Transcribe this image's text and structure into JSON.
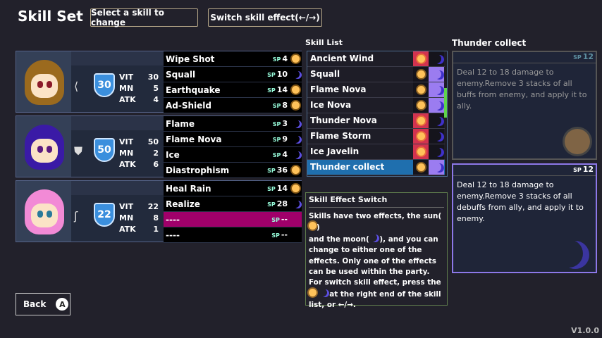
{
  "title": "Skill Set",
  "buttons": {
    "select": "Select a skill to change",
    "switch": "Switch skill effect(←/→)",
    "back": "Back",
    "back_key": "A"
  },
  "stat_labels": [
    "VIT",
    "MN",
    "ATK"
  ],
  "party": [
    {
      "hair": "#9b6a1e",
      "eyes": "#8b1a2a",
      "weapon_icon": "bow-icon",
      "weapon_glyph": "⟨",
      "level": "30",
      "vit": "30",
      "mn": "5",
      "atk": "4",
      "skills": [
        {
          "name": "Wipe Shot",
          "sp": "4",
          "effect": "sun"
        },
        {
          "name": "Squall",
          "sp": "10",
          "effect": "moon"
        },
        {
          "name": "Earthquake",
          "sp": "14",
          "effect": "sun"
        },
        {
          "name": "Ad-Shield",
          "sp": "8",
          "effect": "sun"
        }
      ]
    },
    {
      "hair": "#3a1aa6",
      "eyes": "#5a1a80",
      "weapon_icon": "shield-icon",
      "weapon_glyph": "⛊",
      "level": "50",
      "vit": "50",
      "mn": "2",
      "atk": "6",
      "skills": [
        {
          "name": "Flame",
          "sp": "3",
          "effect": "moon"
        },
        {
          "name": "Flame Nova",
          "sp": "9",
          "effect": "moon"
        },
        {
          "name": "Ice",
          "sp": "4",
          "effect": "moon"
        },
        {
          "name": "Diastrophism",
          "sp": "36",
          "effect": "sun"
        }
      ]
    },
    {
      "hair": "#f28ad6",
      "eyes": "#2a7a9a",
      "weapon_icon": "staff-icon",
      "weapon_glyph": "ʃ",
      "level": "22",
      "vit": "22",
      "mn": "8",
      "atk": "1",
      "skills": [
        {
          "name": "Heal Rain",
          "sp": "14",
          "effect": "sun"
        },
        {
          "name": "Realize",
          "sp": "28",
          "effect": "moon"
        },
        {
          "name": "----",
          "sp": "--",
          "effect": "",
          "selected": true
        },
        {
          "name": "----",
          "sp": "--",
          "effect": ""
        }
      ]
    }
  ],
  "sp_label": "SP",
  "skill_list": {
    "label": "Skill List",
    "items": [
      {
        "name": "Ancient Wind",
        "effect": "sun"
      },
      {
        "name": "Squall",
        "effect": "moon"
      },
      {
        "name": "Flame Nova",
        "effect": "moon"
      },
      {
        "name": "Ice Nova",
        "effect": "moon"
      },
      {
        "name": "Thunder Nova",
        "effect": "sun"
      },
      {
        "name": "Flame Storm",
        "effect": "sun"
      },
      {
        "name": "Ice Javelin",
        "effect": "sun"
      },
      {
        "name": "Thunder collect",
        "effect": "moon",
        "selected": true
      }
    ]
  },
  "detail": {
    "title": "Thunder collect",
    "sun": {
      "sp": "12",
      "text": "Deal 12 to 18 damage to enemy.Remove 3 stacks of all buffs from enemy, and apply it to ally."
    },
    "moon": {
      "sp": "12",
      "text": "Deal 12 to 18 damage to enemy.Remove 3 stacks of all debuffs from ally, and apply it to enemy."
    }
  },
  "switch_help": {
    "title": "Skill Effect Switch",
    "p1a": "Skills have two effects, the sun(",
    "p1b": ")",
    "p2a": "and the moon(",
    "p2b": "), and you can",
    "p3": "change to either one of the effects. Only one of the effects can be used within the party.",
    "p4": "For switch skill effect, press the",
    "p5": " at the right end of the skill list, or  ←/→."
  },
  "colors": {
    "sun_active": "#d2334f",
    "moon_active": "#9b7cf0",
    "selected_row": "#1f6fae",
    "selected_slot": "#a0006a"
  },
  "version": "V1.0.0"
}
